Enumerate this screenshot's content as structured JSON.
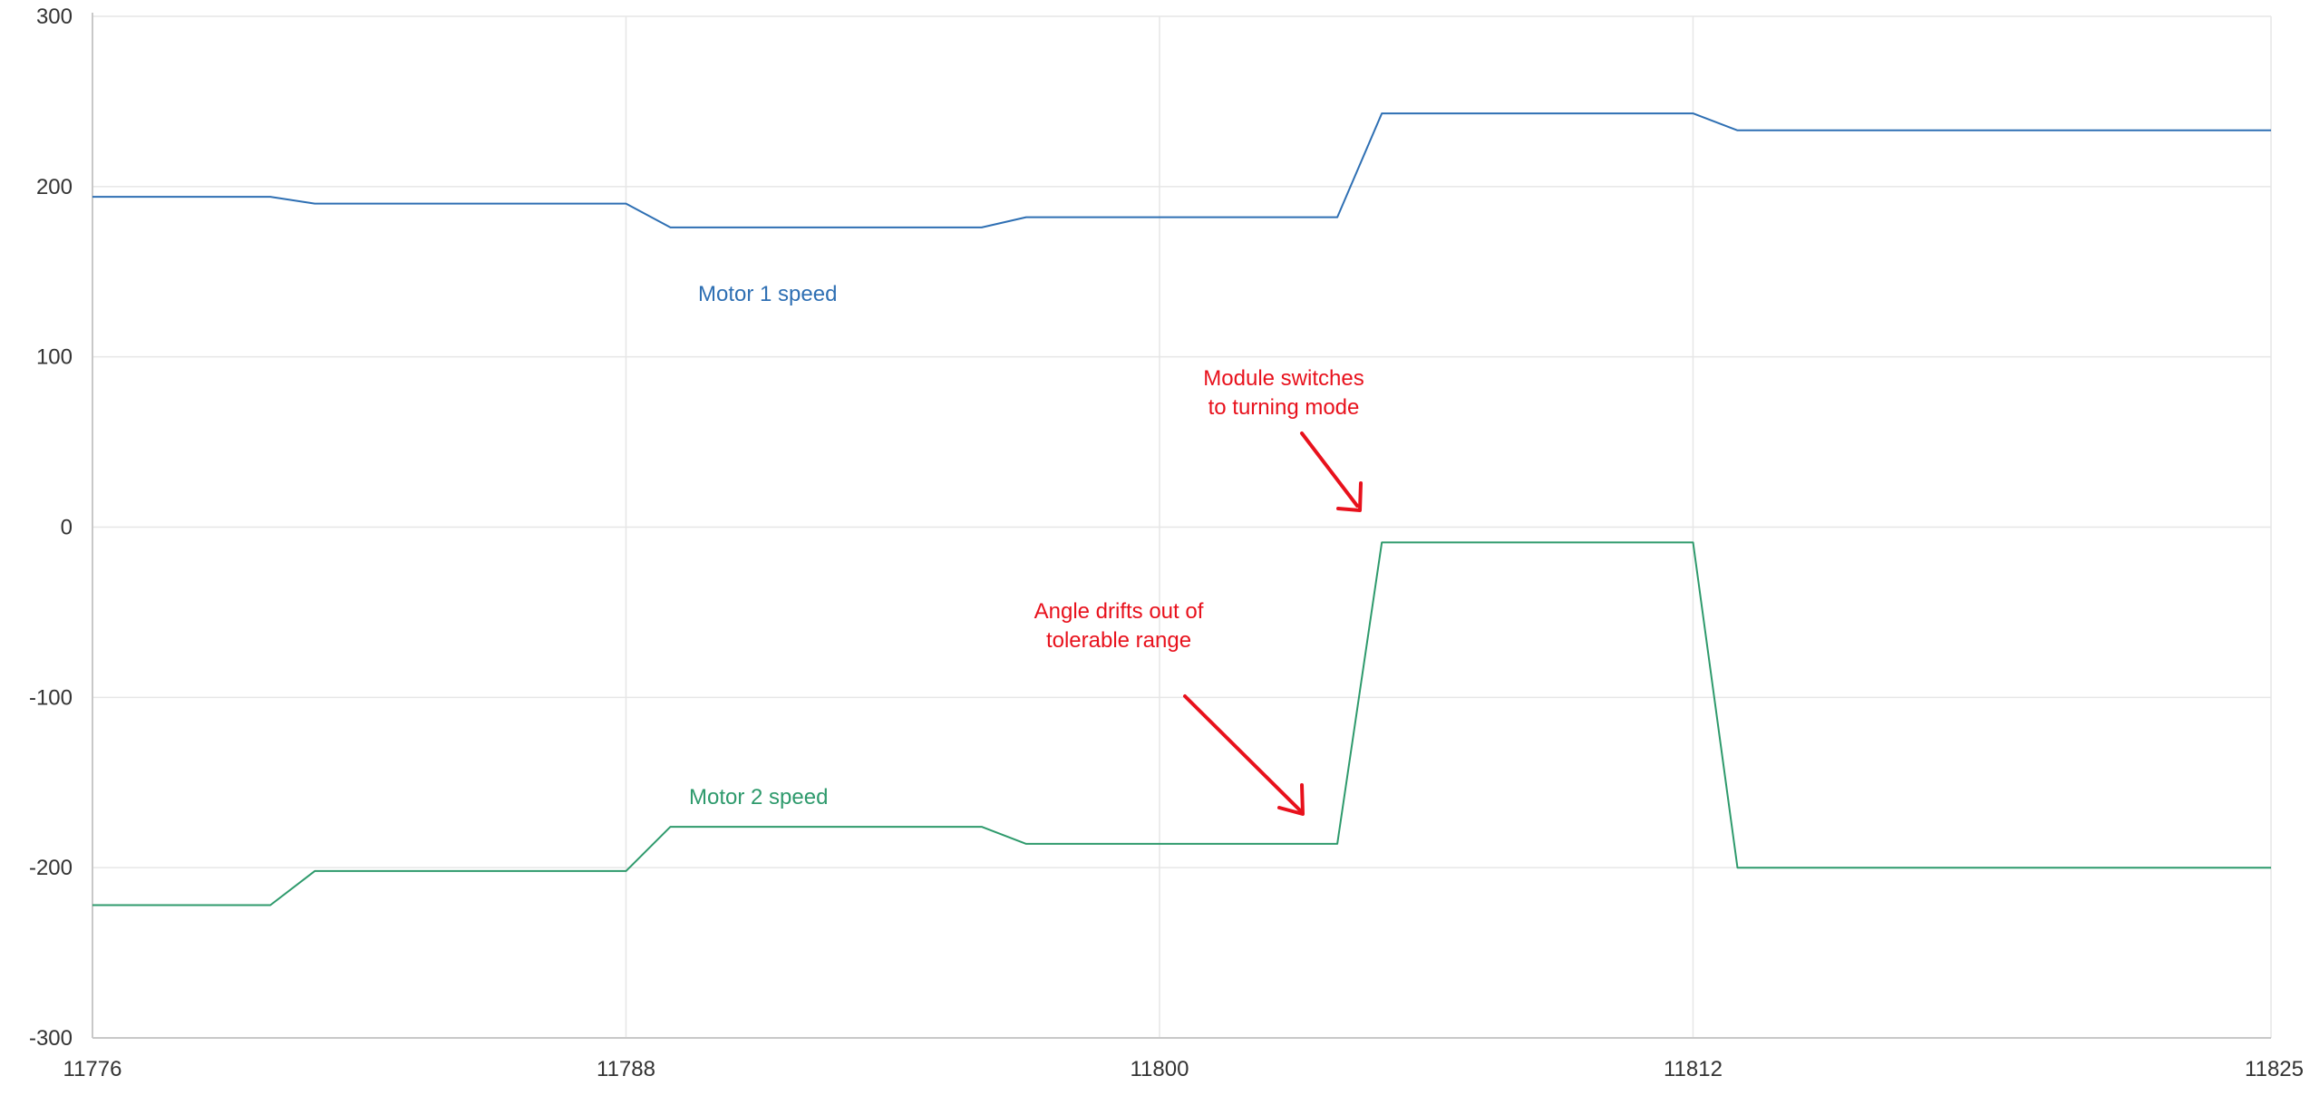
{
  "chart_data": {
    "type": "line",
    "title": "",
    "xlabel": "",
    "ylabel": "",
    "xlim": [
      11776,
      11825
    ],
    "ylim": [
      -300,
      300
    ],
    "x_ticks": [
      11776,
      11788,
      11800,
      11812,
      11825
    ],
    "y_ticks": [
      300,
      200,
      100,
      0,
      -100,
      -200,
      -300
    ],
    "grid": true,
    "series": [
      {
        "name": "Motor 1 speed",
        "color": "#2e6fb3",
        "points": [
          [
            11776,
            194
          ],
          [
            11780,
            194
          ],
          [
            11781,
            190
          ],
          [
            11788,
            190
          ],
          [
            11789,
            176
          ],
          [
            11796,
            176
          ],
          [
            11797,
            182
          ],
          [
            11804,
            182
          ],
          [
            11805,
            243
          ],
          [
            11812,
            243
          ],
          [
            11813,
            233
          ],
          [
            11825,
            233
          ]
        ]
      },
      {
        "name": "Motor 2 speed",
        "color": "#2e9a6c",
        "points": [
          [
            11776,
            -222
          ],
          [
            11780,
            -222
          ],
          [
            11781,
            -202
          ],
          [
            11788,
            -202
          ],
          [
            11789,
            -176
          ],
          [
            11796,
            -176
          ],
          [
            11797,
            -186
          ],
          [
            11804,
            -186
          ],
          [
            11805,
            -9
          ],
          [
            11812,
            -9
          ],
          [
            11813,
            -200
          ],
          [
            11825,
            -200
          ]
        ]
      }
    ],
    "annotations": [
      {
        "id": "module-switch",
        "lines": [
          "Module switches",
          "to turning mode"
        ],
        "color": "#e8111c"
      },
      {
        "id": "angle-drift",
        "lines": [
          "Angle drifts out of",
          "tolerable range"
        ],
        "color": "#e8111c"
      }
    ]
  }
}
